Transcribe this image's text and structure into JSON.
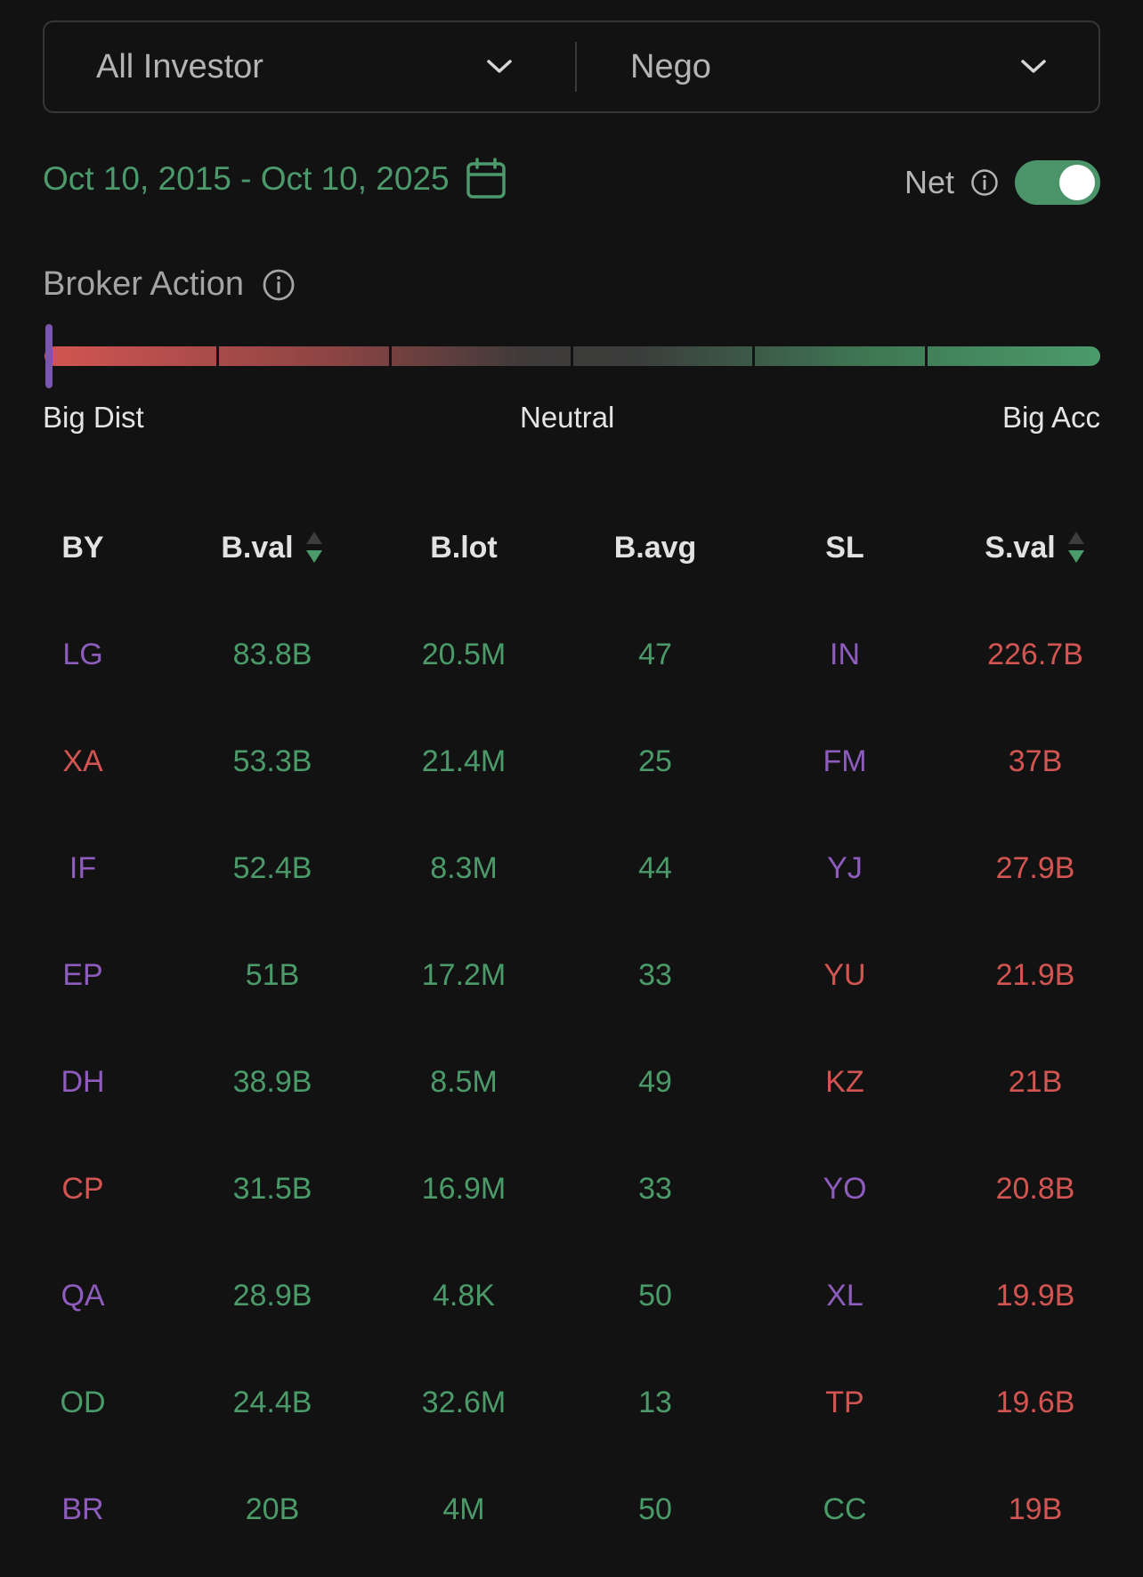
{
  "filters": {
    "investor": "All Investor",
    "market": "Nego"
  },
  "date_range": {
    "label": "Oct 10, 2015 - Oct 10, 2025"
  },
  "net": {
    "label": "Net",
    "enabled": true
  },
  "broker_action": {
    "title": "Broker Action",
    "legend": {
      "left": "Big Dist",
      "center": "Neutral",
      "right": "Big Acc"
    },
    "indicator_level": 0
  },
  "colors": {
    "green": "#4b9b6a",
    "red": "#d25552",
    "purple": "#8d5cbc",
    "background": "#121212"
  },
  "table": {
    "columns": {
      "by": "BY",
      "bval": "B.val",
      "blot": "B.lot",
      "bavg": "B.avg",
      "sl": "SL",
      "sval": "S.val"
    },
    "rows": [
      {
        "by": "LG",
        "by_color": "purple",
        "bval": "83.8B",
        "blot": "20.5M",
        "bavg": "47",
        "sl": "IN",
        "sl_color": "purple",
        "sval": "226.7B"
      },
      {
        "by": "XA",
        "by_color": "red",
        "bval": "53.3B",
        "blot": "21.4M",
        "bavg": "25",
        "sl": "FM",
        "sl_color": "purple",
        "sval": "37B"
      },
      {
        "by": "IF",
        "by_color": "purple",
        "bval": "52.4B",
        "blot": "8.3M",
        "bavg": "44",
        "sl": "YJ",
        "sl_color": "purple",
        "sval": "27.9B"
      },
      {
        "by": "EP",
        "by_color": "purple",
        "bval": "51B",
        "blot": "17.2M",
        "bavg": "33",
        "sl": "YU",
        "sl_color": "red",
        "sval": "21.9B"
      },
      {
        "by": "DH",
        "by_color": "purple",
        "bval": "38.9B",
        "blot": "8.5M",
        "bavg": "49",
        "sl": "KZ",
        "sl_color": "red",
        "sval": "21B"
      },
      {
        "by": "CP",
        "by_color": "red",
        "bval": "31.5B",
        "blot": "16.9M",
        "bavg": "33",
        "sl": "YO",
        "sl_color": "purple",
        "sval": "20.8B"
      },
      {
        "by": "QA",
        "by_color": "purple",
        "bval": "28.9B",
        "blot": "4.8K",
        "bavg": "50",
        "sl": "XL",
        "sl_color": "purple",
        "sval": "19.9B"
      },
      {
        "by": "OD",
        "by_color": "green",
        "bval": "24.4B",
        "blot": "32.6M",
        "bavg": "13",
        "sl": "TP",
        "sl_color": "red",
        "sval": "19.6B"
      },
      {
        "by": "BR",
        "by_color": "purple",
        "bval": "20B",
        "blot": "4M",
        "bavg": "50",
        "sl": "CC",
        "sl_color": "green",
        "sval": "19B"
      }
    ]
  }
}
